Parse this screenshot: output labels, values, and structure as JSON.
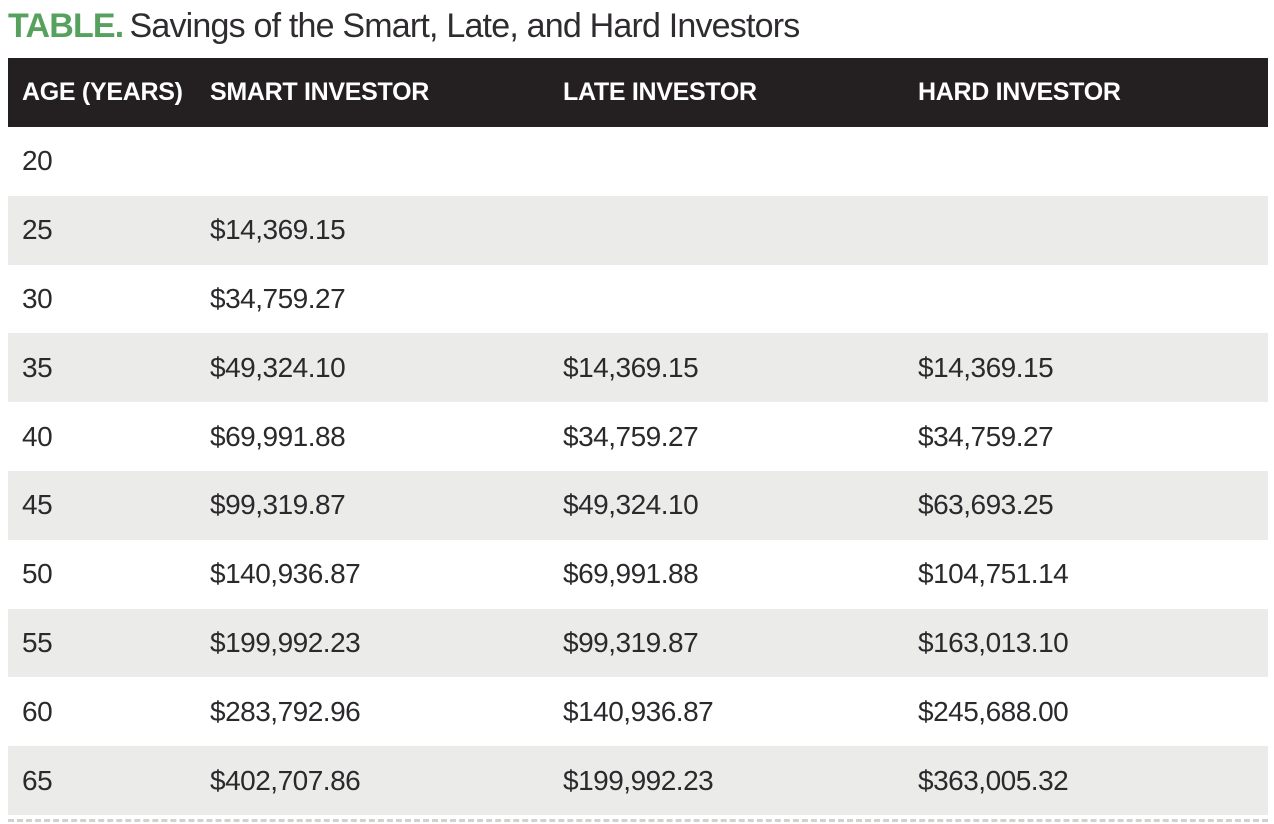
{
  "title": {
    "label": "TABLE.",
    "text": "Savings of the Smart, Late, and Hard Investors"
  },
  "colors": {
    "accent_green": "#57a15f",
    "header_bg": "#242021",
    "row_alt_bg": "#ebebe9",
    "text": "#2b292c"
  },
  "table": {
    "columns": [
      "AGE (YEARS)",
      "SMART INVESTOR",
      "LATE INVESTOR",
      "HARD INVESTOR"
    ],
    "rows": [
      {
        "age": "20",
        "smart": "",
        "late": "",
        "hard": ""
      },
      {
        "age": "25",
        "smart": "$14,369.15",
        "late": "",
        "hard": ""
      },
      {
        "age": "30",
        "smart": "$34,759.27",
        "late": "",
        "hard": ""
      },
      {
        "age": "35",
        "smart": "$49,324.10",
        "late": "$14,369.15",
        "hard": "$14,369.15"
      },
      {
        "age": "40",
        "smart": "$69,991.88",
        "late": "$34,759.27",
        "hard": "$34,759.27"
      },
      {
        "age": "45",
        "smart": "$99,319.87",
        "late": "$49,324.10",
        "hard": "$63,693.25"
      },
      {
        "age": "50",
        "smart": "$140,936.87",
        "late": "$69,991.88",
        "hard": "$104,751.14"
      },
      {
        "age": "55",
        "smart": "$199,992.23",
        "late": "$99,319.87",
        "hard": "$163,013.10"
      },
      {
        "age": "60",
        "smart": "$283,792.96",
        "late": "$140,936.87",
        "hard": "$245,688.00"
      },
      {
        "age": "65",
        "smart": "$402,707.86",
        "late": "$199,992.23",
        "hard": "$363,005.32"
      }
    ]
  }
}
